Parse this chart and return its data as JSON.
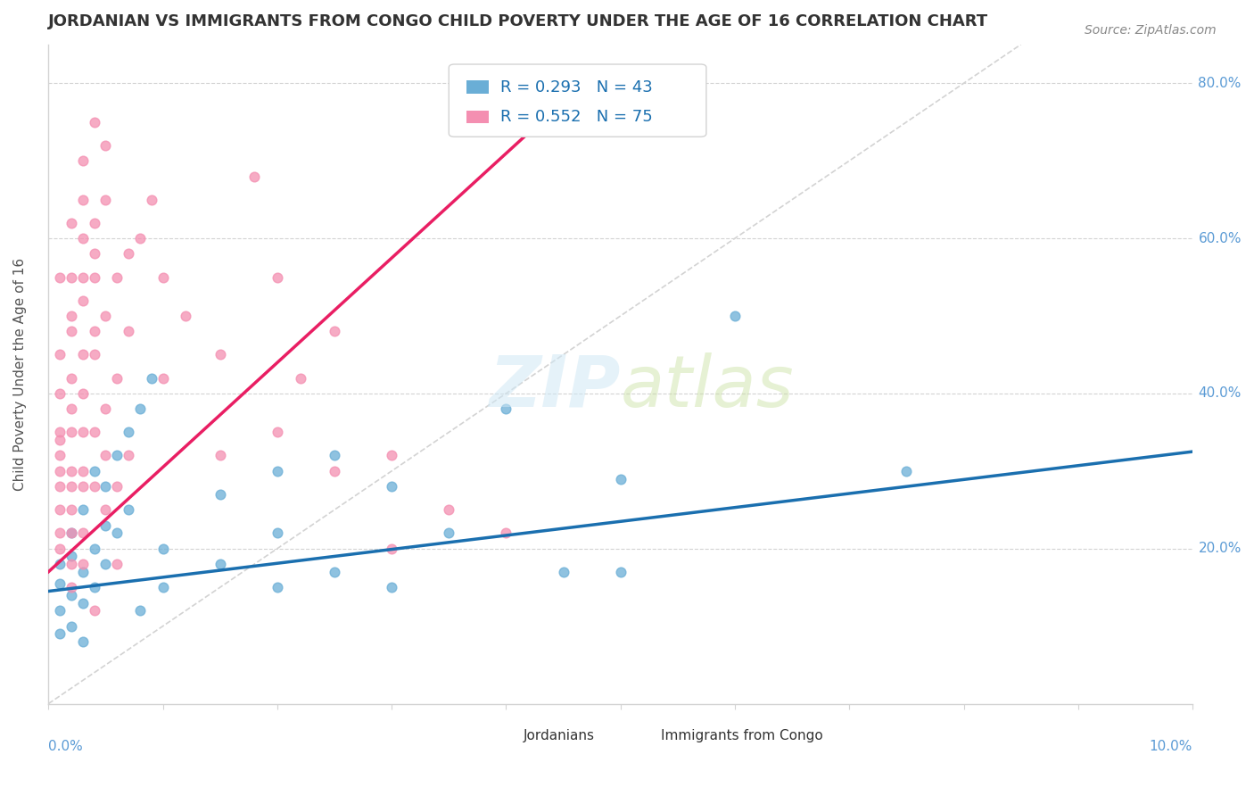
{
  "title": "JORDANIAN VS IMMIGRANTS FROM CONGO CHILD POVERTY UNDER THE AGE OF 16 CORRELATION CHART",
  "source": "Source: ZipAtlas.com",
  "ylabel": "Child Poverty Under the Age of 16",
  "watermark_zip": "ZIP",
  "watermark_atlas": "atlas",
  "xlim": [
    0.0,
    0.1
  ],
  "ylim": [
    0.0,
    0.85
  ],
  "jordanian_color": "#6aaed6",
  "congo_color": "#f48fb1",
  "jordanian_line_color": "#1a6faf",
  "congo_line_color": "#e91e63",
  "tick_color": "#5b9bd5",
  "title_color": "#333333",
  "jordan_legend": "R = 0.293   N = 43",
  "congo_legend": "R = 0.552   N = 75",
  "bottom_legend": [
    "Jordanians",
    "Immigrants from Congo"
  ],
  "jordanian_points": [
    [
      0.001,
      0.155
    ],
    [
      0.001,
      0.12
    ],
    [
      0.001,
      0.18
    ],
    [
      0.001,
      0.09
    ],
    [
      0.002,
      0.14
    ],
    [
      0.002,
      0.19
    ],
    [
      0.002,
      0.22
    ],
    [
      0.002,
      0.1
    ],
    [
      0.003,
      0.13
    ],
    [
      0.003,
      0.17
    ],
    [
      0.003,
      0.25
    ],
    [
      0.003,
      0.08
    ],
    [
      0.004,
      0.2
    ],
    [
      0.004,
      0.15
    ],
    [
      0.004,
      0.3
    ],
    [
      0.005,
      0.28
    ],
    [
      0.005,
      0.18
    ],
    [
      0.005,
      0.23
    ],
    [
      0.006,
      0.32
    ],
    [
      0.006,
      0.22
    ],
    [
      0.007,
      0.35
    ],
    [
      0.007,
      0.25
    ],
    [
      0.008,
      0.38
    ],
    [
      0.008,
      0.12
    ],
    [
      0.009,
      0.42
    ],
    [
      0.01,
      0.2
    ],
    [
      0.01,
      0.15
    ],
    [
      0.015,
      0.27
    ],
    [
      0.015,
      0.18
    ],
    [
      0.02,
      0.3
    ],
    [
      0.02,
      0.15
    ],
    [
      0.02,
      0.22
    ],
    [
      0.025,
      0.32
    ],
    [
      0.025,
      0.17
    ],
    [
      0.03,
      0.28
    ],
    [
      0.03,
      0.15
    ],
    [
      0.035,
      0.22
    ],
    [
      0.04,
      0.38
    ],
    [
      0.045,
      0.17
    ],
    [
      0.05,
      0.17
    ],
    [
      0.05,
      0.29
    ],
    [
      0.06,
      0.5
    ],
    [
      0.075,
      0.3
    ]
  ],
  "congo_points": [
    [
      0.001,
      0.28
    ],
    [
      0.001,
      0.3
    ],
    [
      0.001,
      0.22
    ],
    [
      0.001,
      0.34
    ],
    [
      0.001,
      0.25
    ],
    [
      0.001,
      0.2
    ],
    [
      0.001,
      0.32
    ],
    [
      0.001,
      0.4
    ],
    [
      0.002,
      0.35
    ],
    [
      0.002,
      0.28
    ],
    [
      0.002,
      0.42
    ],
    [
      0.002,
      0.25
    ],
    [
      0.002,
      0.18
    ],
    [
      0.002,
      0.3
    ],
    [
      0.002,
      0.5
    ],
    [
      0.002,
      0.22
    ],
    [
      0.003,
      0.45
    ],
    [
      0.003,
      0.35
    ],
    [
      0.003,
      0.55
    ],
    [
      0.003,
      0.28
    ],
    [
      0.003,
      0.4
    ],
    [
      0.003,
      0.6
    ],
    [
      0.003,
      0.3
    ],
    [
      0.004,
      0.48
    ],
    [
      0.004,
      0.35
    ],
    [
      0.004,
      0.62
    ],
    [
      0.004,
      0.45
    ],
    [
      0.004,
      0.55
    ],
    [
      0.005,
      0.5
    ],
    [
      0.005,
      0.65
    ],
    [
      0.005,
      0.38
    ],
    [
      0.006,
      0.55
    ],
    [
      0.006,
      0.42
    ],
    [
      0.007,
      0.58
    ],
    [
      0.007,
      0.48
    ],
    [
      0.008,
      0.6
    ],
    [
      0.009,
      0.65
    ],
    [
      0.01,
      0.55
    ],
    [
      0.01,
      0.42
    ],
    [
      0.012,
      0.5
    ],
    [
      0.015,
      0.32
    ],
    [
      0.015,
      0.45
    ],
    [
      0.018,
      0.68
    ],
    [
      0.02,
      0.55
    ],
    [
      0.02,
      0.35
    ],
    [
      0.022,
      0.42
    ],
    [
      0.025,
      0.3
    ],
    [
      0.025,
      0.48
    ],
    [
      0.03,
      0.32
    ],
    [
      0.03,
      0.2
    ],
    [
      0.035,
      0.25
    ],
    [
      0.04,
      0.22
    ],
    [
      0.002,
      0.15
    ],
    [
      0.003,
      0.18
    ],
    [
      0.004,
      0.12
    ],
    [
      0.005,
      0.25
    ],
    [
      0.006,
      0.28
    ],
    [
      0.007,
      0.32
    ],
    [
      0.001,
      0.55
    ],
    [
      0.002,
      0.62
    ],
    [
      0.003,
      0.7
    ],
    [
      0.004,
      0.75
    ],
    [
      0.002,
      0.48
    ],
    [
      0.003,
      0.52
    ],
    [
      0.001,
      0.45
    ],
    [
      0.002,
      0.38
    ],
    [
      0.003,
      0.22
    ],
    [
      0.004,
      0.28
    ],
    [
      0.005,
      0.32
    ],
    [
      0.006,
      0.18
    ],
    [
      0.001,
      0.35
    ],
    [
      0.002,
      0.55
    ],
    [
      0.003,
      0.65
    ],
    [
      0.004,
      0.58
    ],
    [
      0.005,
      0.72
    ]
  ],
  "jord_line": [
    [
      0.0,
      0.145
    ],
    [
      0.1,
      0.325
    ]
  ],
  "congo_line": [
    [
      0.0,
      0.17
    ],
    [
      0.043,
      0.75
    ]
  ],
  "diag_line": [
    [
      0.0,
      0.0
    ],
    [
      0.085,
      0.85
    ]
  ]
}
